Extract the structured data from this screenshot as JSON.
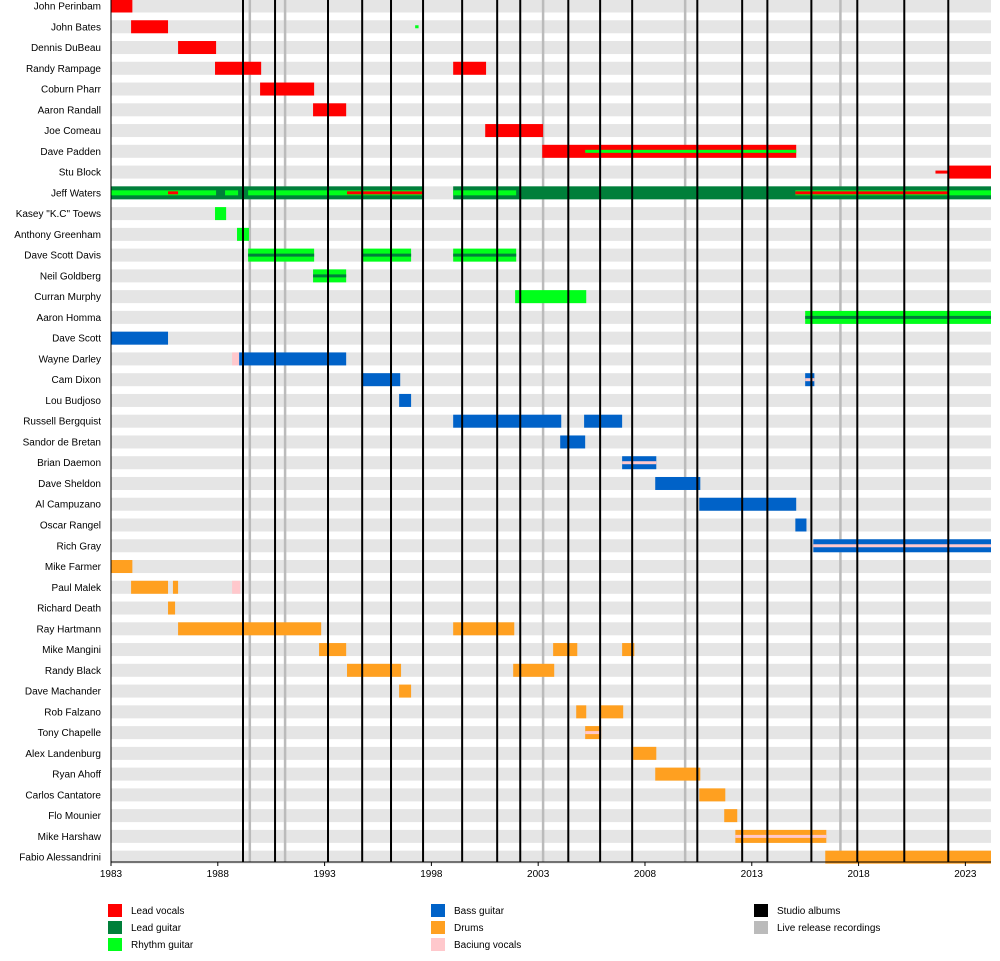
{
  "chart_data": {
    "type": "timeline",
    "xlim": [
      1983,
      2024.2
    ],
    "x_ticks": [
      1983,
      1988,
      1993,
      1998,
      2003,
      2008,
      2013,
      2018,
      2023
    ],
    "colors": {
      "Lead vocals": "#ff0000",
      "Lead guitar": "#007f3a",
      "Rhythm guitar": "#00ff1a",
      "Bass guitar": "#0062c8",
      "Drums": "#ffa020",
      "Baciung vocals": "#ffc8cc",
      "Studio albums": "#000000",
      "Live release recordings": "#bbbbbb"
    },
    "legend": [
      [
        "Lead vocals",
        "Lead guitar",
        "Rhythm guitar"
      ],
      [
        "Bass guitar",
        "Drums",
        "Baciung vocals"
      ],
      [
        "Studio albums",
        "Live release recordings"
      ]
    ],
    "studio_albums": [
      1989.18,
      1990.68,
      1993.16,
      1994.76,
      1996.11,
      1997.61,
      1999.44,
      2001.08,
      2002.16,
      2004.41,
      2005.9,
      2007.4,
      2010.45,
      2012.55,
      2013.73,
      2015.79,
      2017.94,
      2020.14,
      2022.2
    ],
    "live_releases": [
      1989.5,
      1991.15,
      2003.23,
      2009.88,
      2017.15
    ],
    "members": [
      {
        "name": "John Perinbam",
        "bars": [
          {
            "role": "Lead vocals",
            "from": 1983,
            "to": 1984
          }
        ]
      },
      {
        "name": "John Bates",
        "bars": [
          {
            "role": "Lead vocals",
            "from": 1983.94,
            "to": 1985.67
          },
          {
            "role": "Rhythm guitar",
            "from": 1997.24,
            "to": 1997.4,
            "tier": 2
          }
        ]
      },
      {
        "name": "Dennis DuBeau",
        "bars": [
          {
            "role": "Lead vocals",
            "from": 1986.14,
            "to": 1987.92
          }
        ]
      },
      {
        "name": "Randy Rampage",
        "bars": [
          {
            "role": "Lead vocals",
            "from": 1987.87,
            "to": 1990.03
          },
          {
            "role": "Lead vocals",
            "from": 1999.02,
            "to": 2000.56
          }
        ]
      },
      {
        "name": "Coburn Pharr",
        "bars": [
          {
            "role": "Lead vocals",
            "from": 1989.98,
            "to": 1992.51
          }
        ]
      },
      {
        "name": "Aaron Randall",
        "bars": [
          {
            "role": "Lead vocals",
            "from": 1992.46,
            "to": 1994.01
          }
        ]
      },
      {
        "name": "Joe Comeau",
        "bars": [
          {
            "role": "Lead vocals",
            "from": 2000.52,
            "to": 2003.23
          }
        ]
      },
      {
        "name": "Dave Padden",
        "bars": [
          {
            "role": "Lead vocals",
            "from": 2003.19,
            "to": 2015.08
          },
          {
            "role": "Rhythm guitar",
            "from": 2005.2,
            "to": 2015.08,
            "tier": 2
          }
        ]
      },
      {
        "name": "Stu Block",
        "bars": [
          {
            "role": "Lead vocals",
            "from": 2021.6,
            "to": 2022.2,
            "tier": 2
          },
          {
            "role": "Lead vocals",
            "from": 2022.2,
            "to": 2024.2
          }
        ]
      },
      {
        "name": "Jeff Waters",
        "bars": [
          {
            "role": "Lead guitar",
            "from": 1983,
            "to": 1997.61
          },
          {
            "role": "Lead guitar",
            "from": 1999.02,
            "to": 2024.2
          },
          {
            "role": "Rhythm guitar",
            "from": 1983,
            "to": 1987.92,
            "tier": 1
          },
          {
            "role": "Rhythm guitar",
            "from": 1988.34,
            "to": 1988.95,
            "tier": 1
          },
          {
            "role": "Rhythm guitar",
            "from": 1989.42,
            "to": 1997.61,
            "tier": 1
          },
          {
            "role": "Rhythm guitar",
            "from": 1999.02,
            "to": 2001.97,
            "tier": 1
          },
          {
            "role": "Rhythm guitar",
            "from": 2015.04,
            "to": 2024.2,
            "tier": 1
          },
          {
            "role": "Lead vocals",
            "from": 1985.67,
            "to": 1986.14,
            "tier": 2
          },
          {
            "role": "Lead vocals",
            "from": 1994.05,
            "to": 1997.61,
            "tier": 2
          },
          {
            "role": "Lead vocals",
            "from": 2015.04,
            "to": 2022.2,
            "tier": 2
          }
        ]
      },
      {
        "name": "Kasey \"K.C\" Toews",
        "bars": [
          {
            "role": "Rhythm guitar",
            "from": 1987.87,
            "to": 1988.39
          }
        ]
      },
      {
        "name": "Anthony Greenham",
        "bars": [
          {
            "role": "Rhythm guitar",
            "from": 1988.9,
            "to": 1989.46
          }
        ]
      },
      {
        "name": "Dave Scott Davis",
        "bars": [
          {
            "role": "Rhythm guitar",
            "from": 1989.42,
            "to": 1992.51
          },
          {
            "role": "Lead guitar",
            "from": 1989.42,
            "to": 1992.51,
            "tier": 2
          },
          {
            "role": "Rhythm guitar",
            "from": 1994.76,
            "to": 1997.05
          },
          {
            "role": "Lead guitar",
            "from": 1994.76,
            "to": 1997.05,
            "tier": 2
          },
          {
            "role": "Rhythm guitar",
            "from": 1999.02,
            "to": 2001.97
          },
          {
            "role": "Lead guitar",
            "from": 1999.02,
            "to": 2001.97,
            "tier": 2
          }
        ]
      },
      {
        "name": "Neil Goldberg",
        "bars": [
          {
            "role": "Rhythm guitar",
            "from": 1992.46,
            "to": 1994.01
          },
          {
            "role": "Lead guitar",
            "from": 1992.46,
            "to": 1994.01,
            "tier": 2
          }
        ]
      },
      {
        "name": "Curran Murphy",
        "bars": [
          {
            "role": "Rhythm guitar",
            "from": 2001.92,
            "to": 2005.25
          }
        ]
      },
      {
        "name": "Aaron Homma",
        "bars": [
          {
            "role": "Rhythm guitar",
            "from": 2015.5,
            "to": 2024.2
          },
          {
            "role": "Lead guitar",
            "from": 2015.5,
            "to": 2024.2,
            "tier": 2
          }
        ]
      },
      {
        "name": "Dave Scott",
        "bars": [
          {
            "role": "Bass guitar",
            "from": 1983,
            "to": 1985.67
          }
        ]
      },
      {
        "name": "Wayne Darley",
        "bars": [
          {
            "role": "Baciung vocals",
            "from": 1988.67,
            "to": 1989
          },
          {
            "role": "Bass guitar",
            "from": 1989,
            "to": 1994.01
          }
        ]
      },
      {
        "name": "Cam Dixon",
        "bars": [
          {
            "role": "Bass guitar",
            "from": 1994.76,
            "to": 1996.54
          },
          {
            "role": "Bass guitar",
            "from": 2015.5,
            "to": 2015.93
          },
          {
            "role": "Baciung vocals",
            "from": 2015.5,
            "to": 2015.93,
            "tier": 2
          }
        ]
      },
      {
        "name": "Lou Budjoso",
        "bars": [
          {
            "role": "Bass guitar",
            "from": 1996.49,
            "to": 1997.05
          }
        ]
      },
      {
        "name": "Russell Bergquist",
        "bars": [
          {
            "role": "Bass guitar",
            "from": 1999.02,
            "to": 2004.08
          },
          {
            "role": "Bass guitar",
            "from": 2005.15,
            "to": 2006.93
          }
        ]
      },
      {
        "name": "Sandor de Bretan",
        "bars": [
          {
            "role": "Bass guitar",
            "from": 2004.03,
            "to": 2005.2
          }
        ]
      },
      {
        "name": "Brian Daemon",
        "bars": [
          {
            "role": "Bass guitar",
            "from": 2006.93,
            "to": 2008.53
          },
          {
            "role": "Baciung vocals",
            "from": 2006.93,
            "to": 2008.53,
            "tier": 2
          }
        ]
      },
      {
        "name": "Dave Sheldon",
        "bars": [
          {
            "role": "Bass guitar",
            "from": 2008.48,
            "to": 2010.59
          }
        ]
      },
      {
        "name": "Al Campuzano",
        "bars": [
          {
            "role": "Bass guitar",
            "from": 2010.54,
            "to": 2015.08
          }
        ]
      },
      {
        "name": "Oscar Rangel",
        "bars": [
          {
            "role": "Bass guitar",
            "from": 2015.04,
            "to": 2015.56
          }
        ]
      },
      {
        "name": "Rich Gray",
        "bars": [
          {
            "role": "Bass guitar",
            "from": 2015.88,
            "to": 2024.2
          },
          {
            "role": "Baciung vocals",
            "from": 2015.88,
            "to": 2024.2,
            "tier": 2
          }
        ]
      },
      {
        "name": "Mike Farmer",
        "bars": [
          {
            "role": "Drums",
            "from": 1983,
            "to": 1984
          }
        ]
      },
      {
        "name": "Paul Malek",
        "bars": [
          {
            "role": "Drums",
            "from": 1983.94,
            "to": 1985.67
          },
          {
            "role": "Drums",
            "from": 1985.9,
            "to": 1986.14
          },
          {
            "role": "Baciung vocals",
            "from": 1988.67,
            "to": 1989.05
          }
        ]
      },
      {
        "name": "Richard Death",
        "bars": [
          {
            "role": "Drums",
            "from": 1985.67,
            "to": 1986
          }
        ]
      },
      {
        "name": "Ray Hartmann",
        "bars": [
          {
            "role": "Drums",
            "from": 1986.14,
            "to": 1992.84
          },
          {
            "role": "Drums",
            "from": 1999.02,
            "to": 2001.88
          }
        ]
      },
      {
        "name": "Mike Mangini",
        "bars": [
          {
            "role": "Drums",
            "from": 1992.74,
            "to": 1994.01
          },
          {
            "role": "Drums",
            "from": 2003.7,
            "to": 2004.83
          },
          {
            "role": "Drums",
            "from": 2006.93,
            "to": 2007.5
          }
        ]
      },
      {
        "name": "Randy Black",
        "bars": [
          {
            "role": "Drums",
            "from": 1994.05,
            "to": 1996.58
          },
          {
            "role": "Drums",
            "from": 2001.83,
            "to": 2003.75
          }
        ]
      },
      {
        "name": "Dave Machander",
        "bars": [
          {
            "role": "Drums",
            "from": 1996.49,
            "to": 1997.05
          }
        ]
      },
      {
        "name": "Rob Falzano",
        "bars": [
          {
            "role": "Drums",
            "from": 2004.78,
            "to": 2005.25
          },
          {
            "role": "Drums",
            "from": 2005.9,
            "to": 2006.98
          }
        ]
      },
      {
        "name": "Tony Chapelle",
        "bars": [
          {
            "role": "Drums",
            "from": 2005.2,
            "to": 2005.95
          },
          {
            "role": "Baciung vocals",
            "from": 2005.2,
            "to": 2005.95,
            "tier": 2
          }
        ]
      },
      {
        "name": "Alex Landenburg",
        "bars": [
          {
            "role": "Drums",
            "from": 2007.45,
            "to": 2008.53
          }
        ]
      },
      {
        "name": "Ryan Ahoff",
        "bars": [
          {
            "role": "Drums",
            "from": 2008.48,
            "to": 2010.59
          }
        ]
      },
      {
        "name": "Carlos Cantatore",
        "bars": [
          {
            "role": "Drums",
            "from": 2010.54,
            "to": 2011.76
          }
        ]
      },
      {
        "name": "Flo Mounier",
        "bars": [
          {
            "role": "Drums",
            "from": 2011.71,
            "to": 2012.32
          }
        ]
      },
      {
        "name": "Mike Harshaw",
        "bars": [
          {
            "role": "Drums",
            "from": 2012.23,
            "to": 2016.49
          },
          {
            "role": "Baciung vocals",
            "from": 2012.23,
            "to": 2016.49,
            "tier": 2
          }
        ]
      },
      {
        "name": "Fabio Alessandrini",
        "bars": [
          {
            "role": "Drums",
            "from": 2016.44,
            "to": 2024.2
          }
        ]
      }
    ]
  }
}
